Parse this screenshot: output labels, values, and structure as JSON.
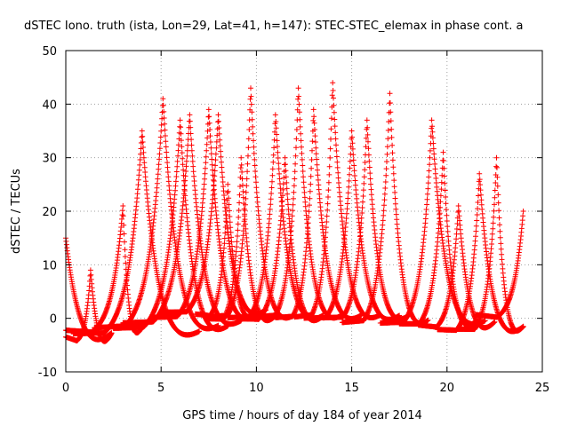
{
  "chart_data": {
    "type": "scatter",
    "title": "dSTEC Iono. truth (ista, Lon=29, Lat=41, h=147): STEC-STEC_elemax in phase cont. a",
    "xlabel": "GPS time / hours of day 184 of year 2014",
    "ylabel": "dSTEC  / TECUs",
    "xlim": [
      0,
      25
    ],
    "ylim": [
      -10,
      50
    ],
    "xticks": [
      0,
      5,
      10,
      15,
      20,
      25
    ],
    "yticks": [
      -10,
      0,
      10,
      20,
      30,
      40,
      50
    ],
    "grid": true,
    "marker": "+",
    "color": "#ff0000",
    "passes": [
      {
        "start": 0.0,
        "peak": 0.0,
        "end": 2.4,
        "peakval": 15,
        "minval": -5
      },
      {
        "start": 0.0,
        "peak": 1.3,
        "end": 2.4,
        "peakval": 9,
        "minval": -5
      },
      {
        "start": 0.0,
        "peak": 3.0,
        "end": 4.0,
        "peakval": 21,
        "minval": -4
      },
      {
        "start": 0.4,
        "peak": 4.0,
        "end": 7.0,
        "peakval": 35,
        "minval": -5
      },
      {
        "start": 1.5,
        "peak": 5.1,
        "end": 8.0,
        "peakval": 41,
        "minval": -4
      },
      {
        "start": 2.5,
        "peak": 6.0,
        "end": 8.5,
        "peakval": 37,
        "minval": -4
      },
      {
        "start": 3.0,
        "peak": 6.5,
        "end": 9.2,
        "peakval": 38,
        "minval": -3
      },
      {
        "start": 4.5,
        "peak": 7.5,
        "end": 10.0,
        "peakval": 39,
        "minval": -2
      },
      {
        "start": 5.0,
        "peak": 8.0,
        "end": 10.5,
        "peakval": 38,
        "minval": -1
      },
      {
        "start": 6.8,
        "peak": 8.5,
        "end": 10.0,
        "peakval": 25,
        "minval": -1
      },
      {
        "start": 7.5,
        "peak": 9.2,
        "end": 11.0,
        "peakval": 30,
        "minval": -2
      },
      {
        "start": 7.5,
        "peak": 9.7,
        "end": 12.0,
        "peakval": 43,
        "minval": -2
      },
      {
        "start": 8.5,
        "peak": 11.0,
        "end": 13.5,
        "peakval": 38,
        "minval": -2
      },
      {
        "start": 9.0,
        "peak": 11.5,
        "end": 13.5,
        "peakval": 30,
        "minval": -2
      },
      {
        "start": 10.0,
        "peak": 12.2,
        "end": 14.5,
        "peakval": 43,
        "minval": -2
      },
      {
        "start": 11.0,
        "peak": 13.0,
        "end": 15.5,
        "peakval": 39,
        "minval": -2
      },
      {
        "start": 12.0,
        "peak": 14.0,
        "end": 16.5,
        "peakval": 44,
        "minval": -2
      },
      {
        "start": 12.5,
        "peak": 15.0,
        "end": 17.5,
        "peakval": 35,
        "minval": -2
      },
      {
        "start": 13.5,
        "peak": 15.8,
        "end": 18.0,
        "peakval": 37,
        "minval": -2
      },
      {
        "start": 14.5,
        "peak": 17.0,
        "end": 19.0,
        "peakval": 42,
        "minval": -3
      },
      {
        "start": 16.5,
        "peak": 19.2,
        "end": 22.0,
        "peakval": 37,
        "minval": -3
      },
      {
        "start": 17.5,
        "peak": 19.8,
        "end": 21.5,
        "peakval": 31,
        "minval": -3
      },
      {
        "start": 18.5,
        "peak": 20.6,
        "end": 22.5,
        "peakval": 21,
        "minval": -3
      },
      {
        "start": 19.5,
        "peak": 21.7,
        "end": 24.0,
        "peakval": 27,
        "minval": -4
      },
      {
        "start": 20.5,
        "peak": 22.6,
        "end": 24.0,
        "peakval": 30,
        "minval": -4
      },
      {
        "start": 21.5,
        "peak": 24.0,
        "end": 24.0,
        "peakval": 20,
        "minval": -1
      }
    ]
  }
}
